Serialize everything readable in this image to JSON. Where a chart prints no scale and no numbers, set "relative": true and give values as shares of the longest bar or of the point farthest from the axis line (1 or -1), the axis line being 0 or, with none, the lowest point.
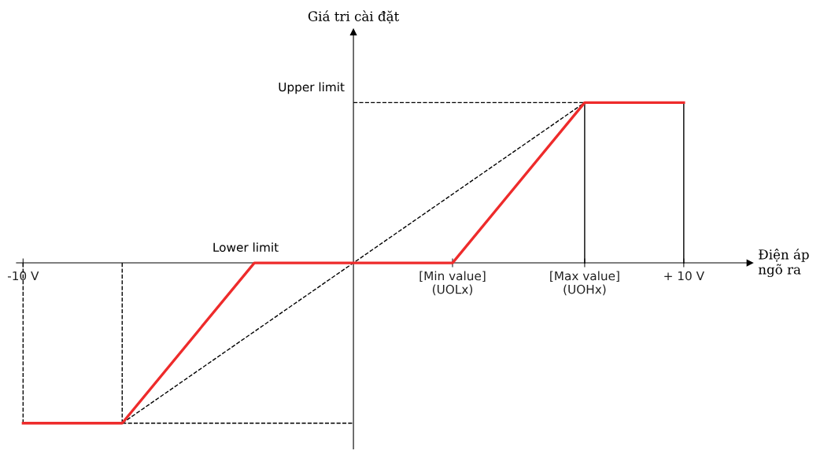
{
  "chart_data": {
    "type": "line",
    "relative": true,
    "xlabel": "Điện áp\nngõ ra",
    "xlim": [
      -10.2,
      12
    ],
    "xticks": [
      {
        "value": -10,
        "label": "-10 V"
      },
      {
        "value": 3,
        "label": "[Min value]\n(UOLx)"
      },
      {
        "value": 7,
        "label": "[Max value]\n(UOHx)"
      },
      {
        "value": 10,
        "label": "+ 10 V"
      }
    ],
    "series": [
      {
        "color": "#000000",
        "line_style": "dashed",
        "x": [
          -10,
          -10
        ],
        "values": [
          0,
          -1
        ]
      },
      {
        "color": "#000000",
        "line_style": "dashed",
        "x": [
          -7,
          -7
        ],
        "values": [
          0,
          -1
        ]
      },
      {
        "color": "#000000",
        "line_style": "dashed",
        "x": [
          -7,
          0
        ],
        "values": [
          -1,
          -1
        ]
      },
      {
        "color": "#000000",
        "line_style": "dashed",
        "x": [
          0,
          7
        ],
        "values": [
          1,
          1
        ]
      },
      {
        "color": "#000000",
        "line_style": "solid",
        "x": [
          7,
          7
        ],
        "values": [
          1,
          0
        ]
      },
      {
        "color": "#000000",
        "line_style": "solid",
        "x": [
          10,
          10
        ],
        "values": [
          1,
          0
        ]
      },
      {
        "color": "#000000",
        "line_style": "dashed",
        "x": [
          -7,
          7
        ],
        "values": [
          -1,
          1
        ]
      },
      {
        "color": "#ee2b2b",
        "line_style": "solid",
        "x": [
          -10,
          -7,
          -3,
          3,
          7,
          10
        ],
        "values": [
          -1,
          -1,
          0,
          0,
          1,
          1
        ]
      }
    ],
    "annotations": [
      "Giá tri cài đặt",
      {
        "text": "Upper limit",
        "x": 0,
        "y": 1
      },
      {
        "text": "Lower limit",
        "x": -3,
        "y": 0
      }
    ],
    "legend": false,
    "grid": false
  }
}
